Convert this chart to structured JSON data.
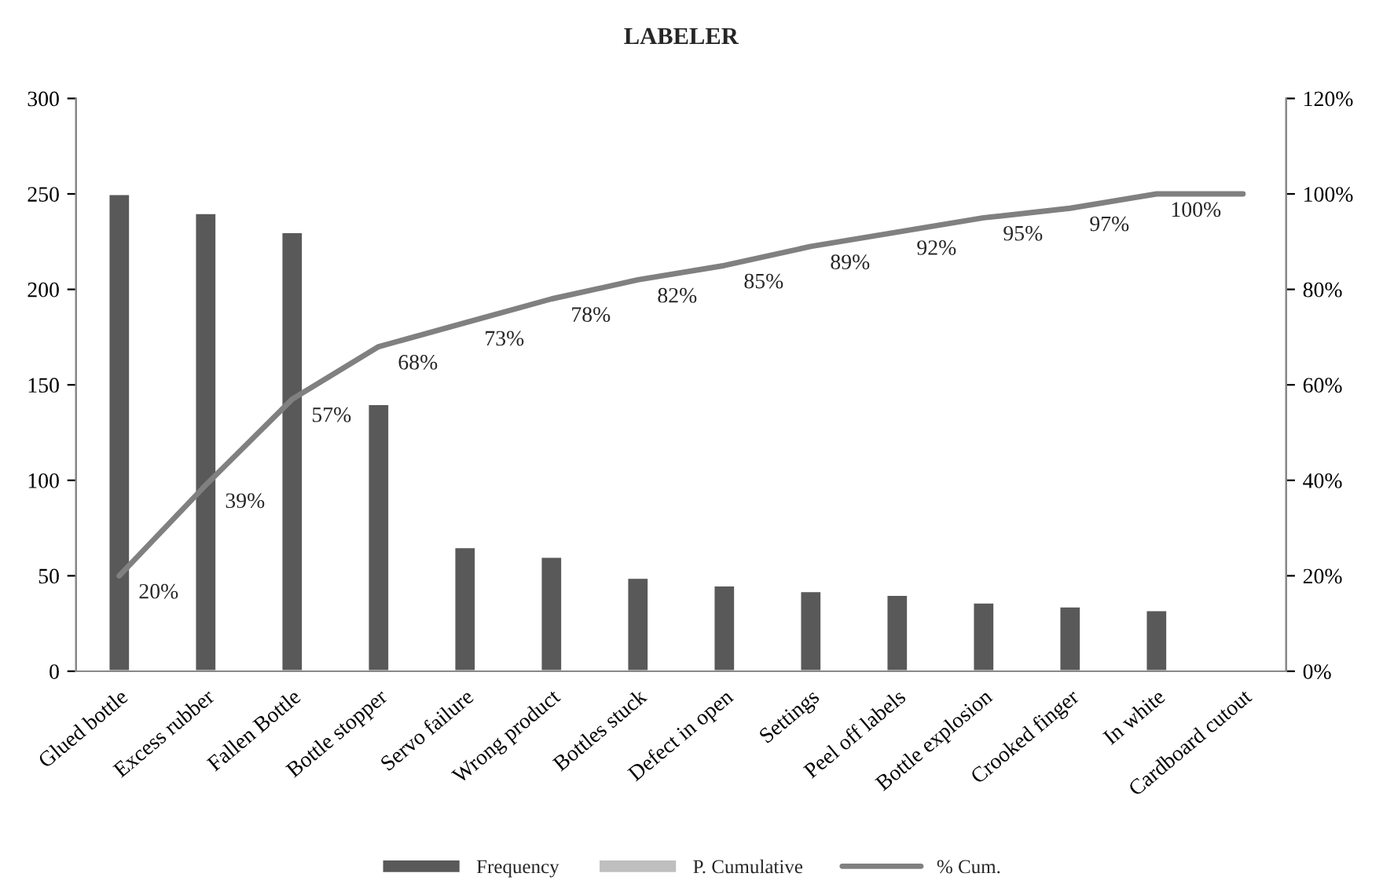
{
  "chart_data": {
    "type": "bar",
    "title": "LABELER",
    "categories": [
      "Glued bottle",
      "Excess rubber",
      "Fallen Bottle",
      "Bottle stopper",
      "Servo failure",
      "Wrong product",
      "Bottles stuck",
      "Defect in open",
      "Settings",
      "Peel off labels",
      "Bottle explosion",
      "Crooked finger",
      "In white",
      "Cardboard cutout"
    ],
    "series": [
      {
        "name": "Frequency",
        "color": "#595959",
        "values": [
          250,
          240,
          230,
          140,
          65,
          60,
          49,
          45,
          42,
          40,
          36,
          34,
          32,
          null
        ]
      },
      {
        "name": "P. Cumulative",
        "color": "#bfbfbf",
        "values": [
          null,
          null,
          null,
          null,
          null,
          null,
          null,
          null,
          null,
          null,
          null,
          null,
          null,
          null
        ]
      },
      {
        "name": "% Cum.",
        "type": "line",
        "axis": "y2",
        "color": "#808080",
        "values": [
          20,
          39,
          57,
          68,
          73,
          78,
          82,
          85,
          89,
          92,
          95,
          97,
          100,
          100
        ],
        "value_labels": [
          "20%",
          "39%",
          "57%",
          "68%",
          "73%",
          "78%",
          "82%",
          "85%",
          "89%",
          "92%",
          "95%",
          "97%",
          "100%",
          null
        ]
      }
    ],
    "ylim": [
      0,
      300
    ],
    "yticks": [
      0,
      50,
      100,
      150,
      200,
      250,
      300
    ],
    "y2lim": [
      0,
      120
    ],
    "y2ticks": [
      {
        "value": 0,
        "label": "0%"
      },
      {
        "value": 20,
        "label": "20%"
      },
      {
        "value": 40,
        "label": "40%"
      },
      {
        "value": 60,
        "label": "60%"
      },
      {
        "value": 80,
        "label": "80%"
      },
      {
        "value": 100,
        "label": "100%"
      },
      {
        "value": 120,
        "label": "120%"
      }
    ],
    "legend": "bottom",
    "grid": false,
    "marker": "none",
    "line_style": "solid"
  }
}
